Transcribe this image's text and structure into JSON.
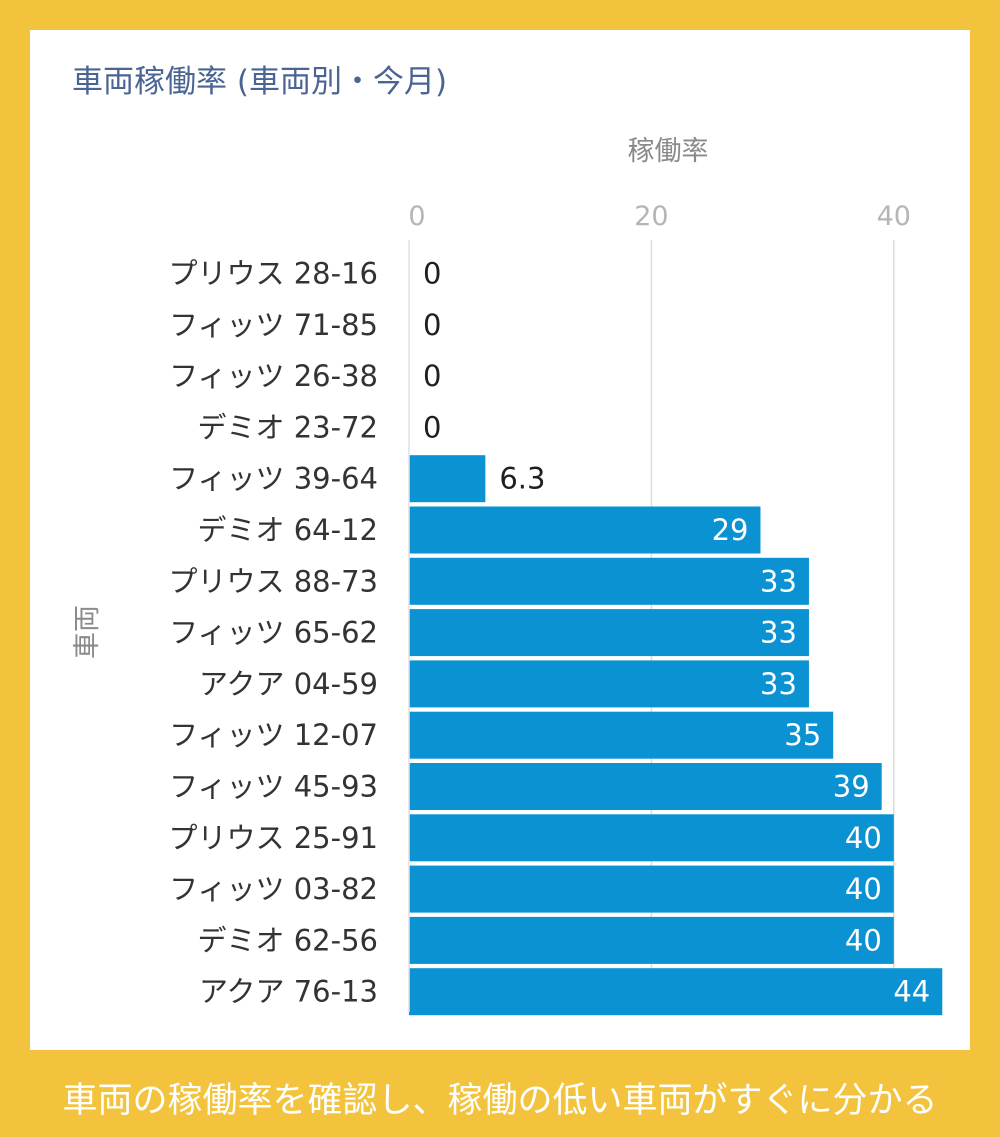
{
  "title": "車両稼働率 (車両別・今月)",
  "caption": "車両の稼働率を確認し、稼働の低い車両がすぐに分かる",
  "colors": {
    "background": "#f3c33d",
    "bar": "#0a92d2",
    "title": "#4a6494",
    "grid": "#dddddd"
  },
  "chart_data": {
    "type": "bar",
    "orientation": "horizontal",
    "xlabel": "稼働率",
    "ylabel": "車両",
    "xlim": [
      0,
      44
    ],
    "xticks": [
      "0",
      "20",
      "40"
    ],
    "grid": true,
    "categories": [
      "プリウス 28-16",
      "フィッツ 71-85",
      "フィッツ 26-38",
      "デミオ 23-72",
      "フィッツ 39-64",
      "デミオ 64-12",
      "プリウス 88-73",
      "フィッツ 65-62",
      "アクア 04-59",
      "フィッツ 12-07",
      "フィッツ 45-93",
      "プリウス 25-91",
      "フィッツ 03-82",
      "デミオ 62-56",
      "アクア 76-13"
    ],
    "values": [
      0,
      0,
      0,
      0,
      6.3,
      29,
      33,
      33,
      33,
      35,
      39,
      40,
      40,
      40,
      44
    ],
    "value_labels": [
      "0",
      "0",
      "0",
      "0",
      "6.3",
      "29",
      "33",
      "33",
      "33",
      "35",
      "39",
      "40",
      "40",
      "40",
      "44"
    ]
  }
}
